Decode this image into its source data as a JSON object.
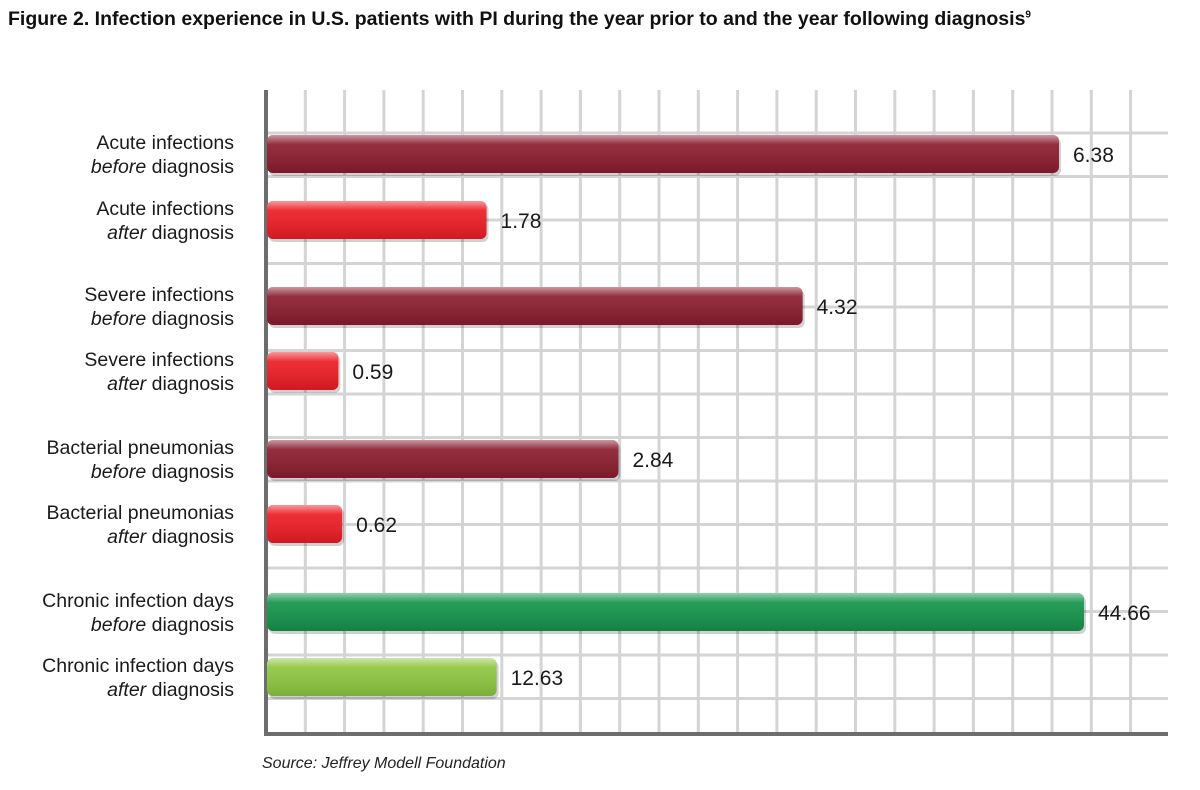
{
  "figure": {
    "title": "Figure 2.  Infection experience in U.S. patients with PI during the year prior to and the year following diagnosis",
    "footnote_marker": "9",
    "source": "Source:  Jeffrey Modell Foundation"
  },
  "chart_data": {
    "type": "bar",
    "orientation": "horizontal",
    "title": "Figure 2.  Infection experience in U.S. patients with PI during the year prior to and the year following diagnosis",
    "xlabel": "",
    "ylabel": "",
    "grid": true,
    "categories": [
      {
        "line1": "Acute infections",
        "emph": "before",
        "rest": " diagnosis"
      },
      {
        "line1": "Acute infections",
        "emph": "after",
        "rest": " diagnosis"
      },
      {
        "line1": "Severe infections",
        "emph": "before",
        "rest": " diagnosis"
      },
      {
        "line1": "Severe infections",
        "emph": "after",
        "rest": " diagnosis"
      },
      {
        "line1": "Bacterial pneumonias",
        "emph": "before",
        "rest": " diagnosis"
      },
      {
        "line1": "Bacterial pneumonias",
        "emph": "after",
        "rest": " diagnosis"
      },
      {
        "line1": "Chronic infection days",
        "emph": "before",
        "rest": " diagnosis"
      },
      {
        "line1": "Chronic infection days",
        "emph": "after",
        "rest": " diagnosis"
      }
    ],
    "values": [
      6.38,
      1.78,
      4.32,
      0.59,
      2.84,
      0.62,
      44.66,
      12.63
    ],
    "value_labels": [
      "6.38",
      "1.78",
      "4.32",
      "0.59",
      "2.84",
      "0.62",
      "44.66",
      "12.63"
    ],
    "colors": [
      "#8a1c2e",
      "#ec1c24",
      "#8a1c2e",
      "#ec1c24",
      "#8a1c2e",
      "#ec1c24",
      "#14934a",
      "#8dc63f"
    ],
    "scale_groups": [
      {
        "indices": [
          0,
          1,
          2,
          3,
          4,
          5
        ],
        "xlim": [
          0,
          7.05
        ]
      },
      {
        "indices": [
          6,
          7
        ],
        "xlim": [
          0,
          49.3
        ]
      }
    ]
  }
}
